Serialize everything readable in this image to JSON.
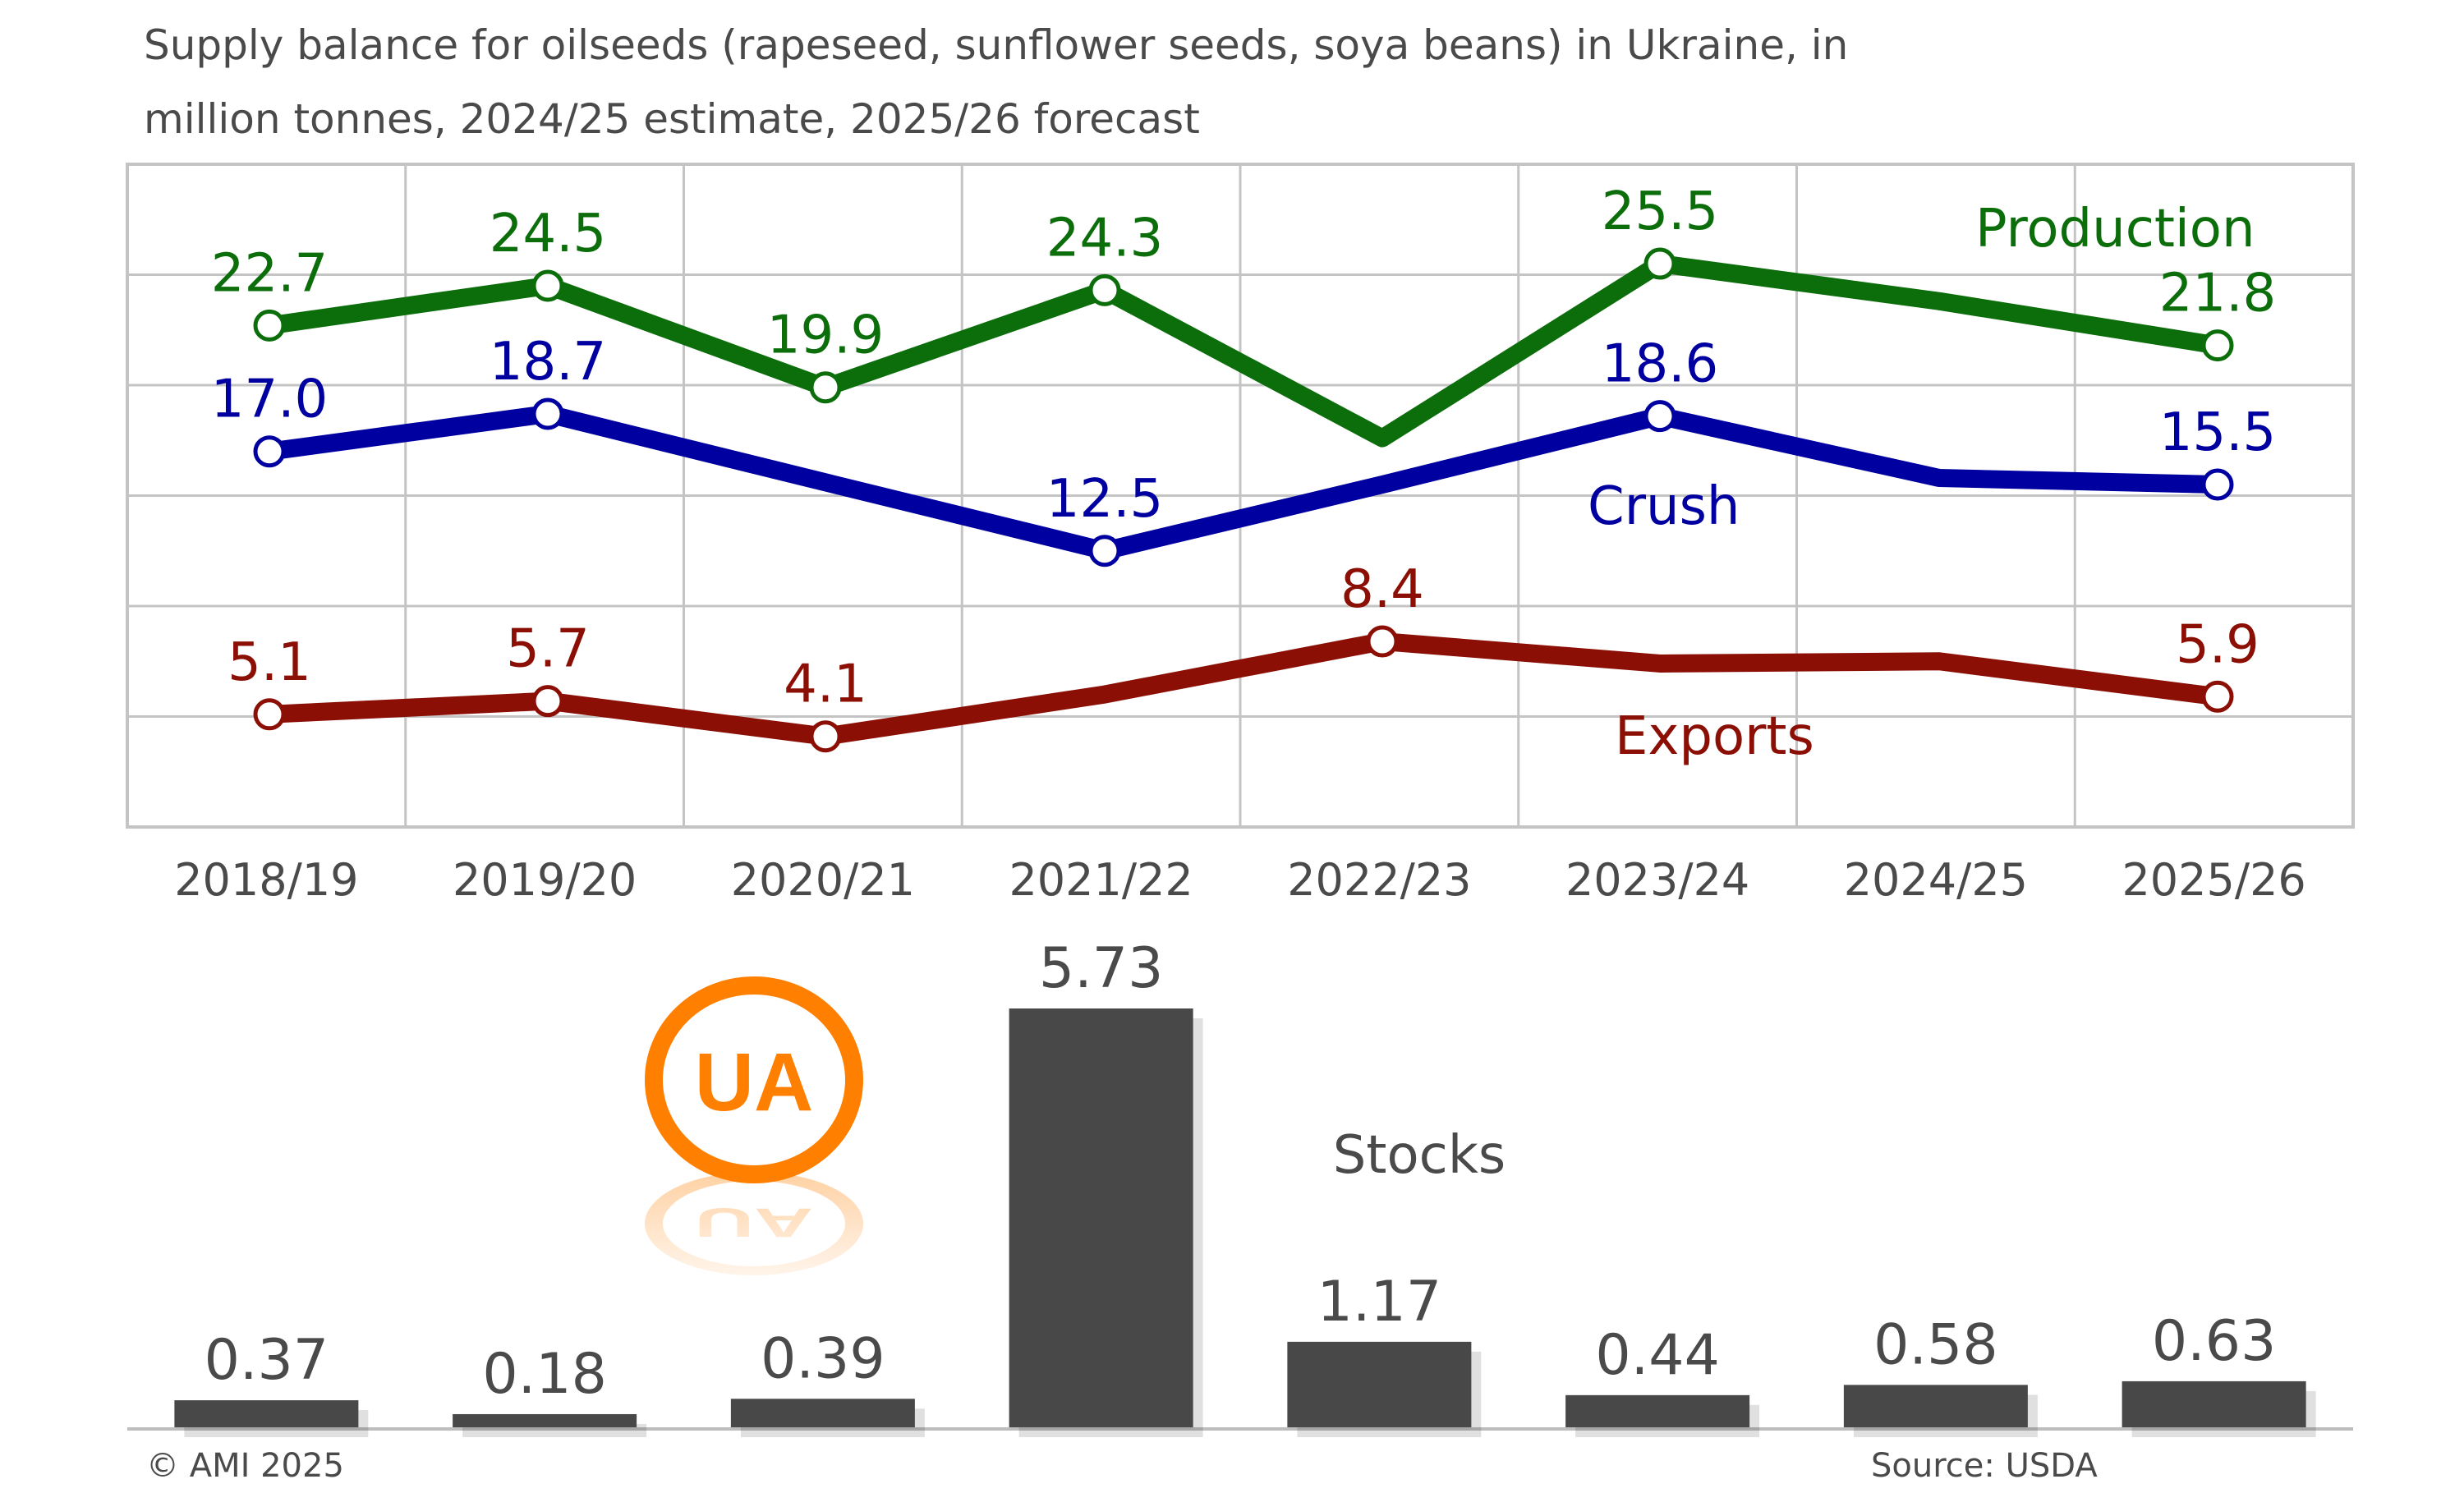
{
  "title": {
    "line1": "Supply balance for oilseeds (rapeseed, sunflower seeds, soya beans) in Ukraine, in",
    "line2": "million tonnes, 2024/25 estimate, 2025/26 forecast"
  },
  "colors": {
    "production": "#0b6e0b",
    "crush": "#0000a0",
    "exports": "#8b0f05",
    "stocks": "#484848",
    "grid": "#c4c4c4",
    "text": "#4a4a4a",
    "logo": "#ff7f00"
  },
  "logo": {
    "text": "UA"
  },
  "footer": {
    "copyright": "© AMI 2025",
    "source": "Source: USDA"
  },
  "chart_data": [
    {
      "type": "line",
      "title": "Supply balance for oilseeds (rapeseed, sunflower seeds, soya beans) in Ukraine, in million tonnes, 2024/25 estimate, 2025/26 forecast",
      "categories": [
        "2018/19",
        "2019/20",
        "2020/21",
        "2021/22",
        "2022/23",
        "2023/24",
        "2024/25",
        "2025/26"
      ],
      "ylim": [
        0,
        30
      ],
      "grid": true,
      "series": [
        {
          "name": "Production",
          "key": "production",
          "values": [
            22.7,
            24.5,
            19.9,
            24.3,
            17.6,
            25.5,
            23.8,
            21.8
          ],
          "labels": [
            "22.7",
            "24.5",
            "19.9",
            "24.3",
            "",
            "25.5",
            "",
            "21.8"
          ]
        },
        {
          "name": "Crush",
          "key": "crush",
          "values": [
            17.0,
            18.7,
            15.6,
            12.5,
            15.5,
            18.6,
            15.8,
            15.5
          ],
          "labels": [
            "17.0",
            "18.7",
            "",
            "12.5",
            "",
            "18.6",
            "",
            "15.5"
          ]
        },
        {
          "name": "Exports",
          "key": "exports",
          "values": [
            5.1,
            5.7,
            4.1,
            6.0,
            8.4,
            7.4,
            7.5,
            5.9
          ],
          "labels": [
            "5.1",
            "5.7",
            "4.1",
            "",
            "8.4",
            "",
            "",
            "5.9"
          ]
        }
      ]
    },
    {
      "type": "bar",
      "title": "Stocks",
      "categories": [
        "2018/19",
        "2019/20",
        "2020/21",
        "2021/22",
        "2022/23",
        "2023/24",
        "2024/25",
        "2025/26"
      ],
      "values": [
        0.37,
        0.18,
        0.39,
        5.73,
        1.17,
        0.44,
        0.58,
        0.63
      ],
      "labels": [
        "0.37",
        "0.18",
        "0.39",
        "5.73",
        "1.17",
        "0.44",
        "0.58",
        "0.63"
      ]
    }
  ]
}
